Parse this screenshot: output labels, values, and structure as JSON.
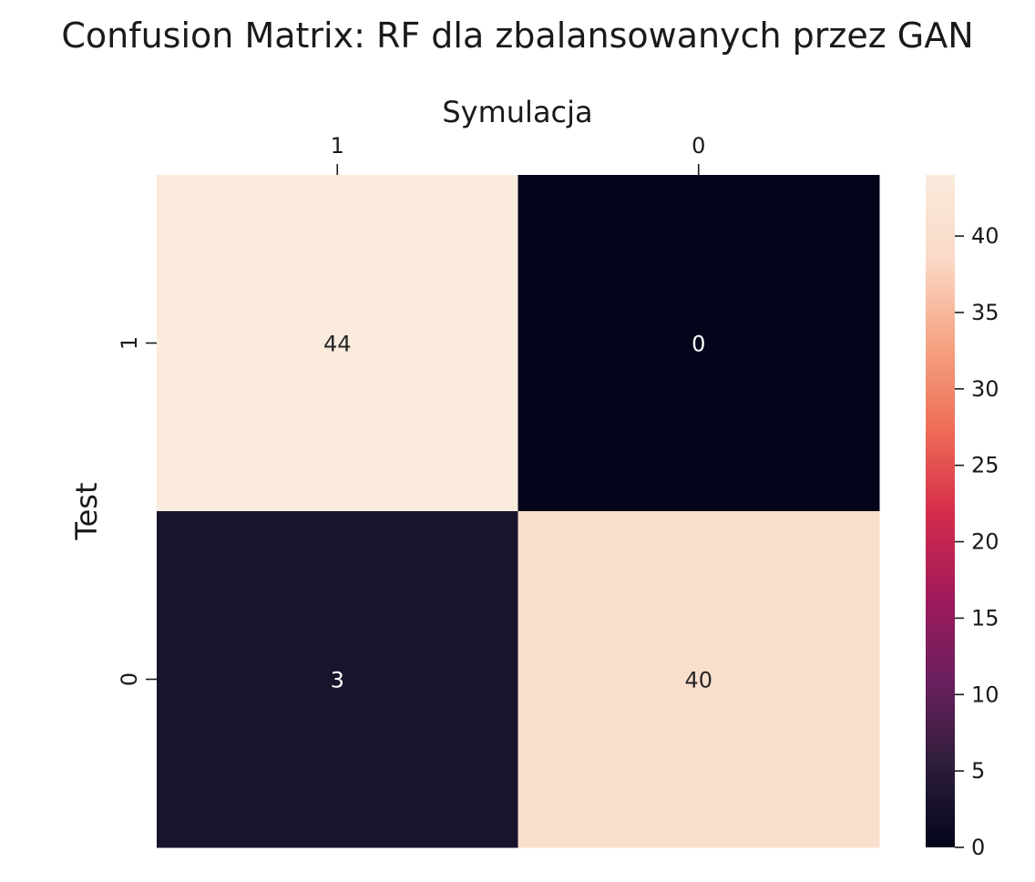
{
  "chart_data": {
    "type": "heatmap",
    "title": "Confusion Matrix: RF dla zbalansowanych przez GAN",
    "xlabel": "Symulacja",
    "ylabel": "Test",
    "x_categories": [
      "1",
      "0"
    ],
    "y_categories": [
      "1",
      "0"
    ],
    "values": [
      [
        44,
        0
      ],
      [
        3,
        40
      ]
    ],
    "colorbar": {
      "range": [
        0,
        44
      ],
      "ticks": [
        0,
        5,
        10,
        15,
        20,
        25,
        30,
        35,
        40
      ],
      "colormap": [
        "#03051a",
        "#2e1e3b",
        "#6b1f5e",
        "#a11a5b",
        "#d52d4a",
        "#ee6e56",
        "#f5a584",
        "#fad9c6",
        "#faebdd"
      ]
    },
    "x_axis_position": "top",
    "grid": false
  }
}
